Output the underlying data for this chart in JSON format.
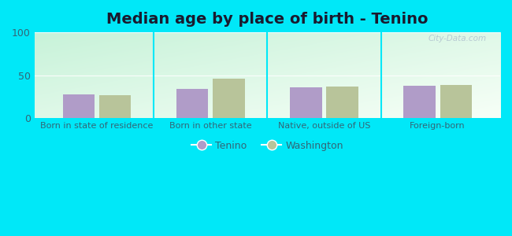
{
  "title": "Median age by place of birth - Tenino",
  "categories": [
    "Born in state of residence",
    "Born in other state",
    "Native, outside of US",
    "Foreign-born"
  ],
  "tenino_values": [
    28,
    34,
    36,
    38
  ],
  "washington_values": [
    27,
    46,
    37,
    39
  ],
  "tenino_color": "#b09cc8",
  "washington_color": "#b8c49a",
  "ylim": [
    0,
    100
  ],
  "yticks": [
    0,
    50,
    100
  ],
  "outer_bg": "#00e8f8",
  "label_color": "#336677",
  "legend_tenino": "Tenino",
  "legend_washington": "Washington",
  "watermark": "City-Data.com",
  "title_fontsize": 14,
  "tick_fontsize": 8
}
